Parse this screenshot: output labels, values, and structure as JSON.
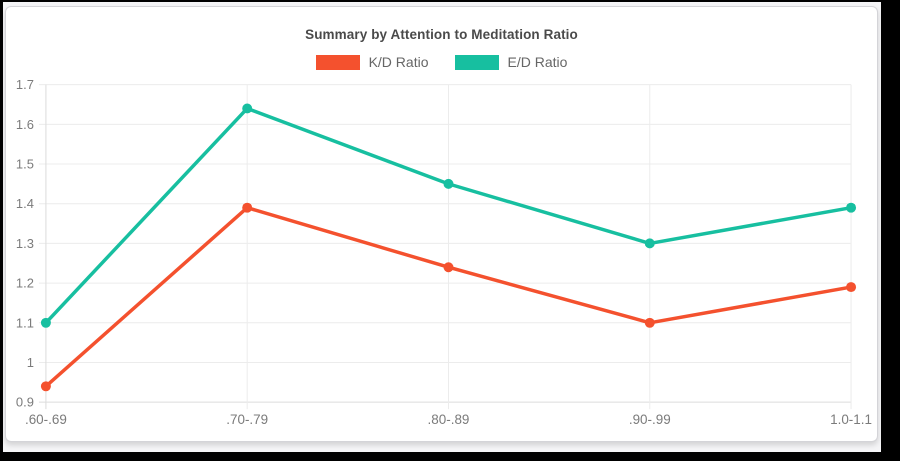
{
  "chart_data": {
    "type": "line",
    "title": "Summary by Attention to Meditation Ratio",
    "categories": [
      ".60-.69",
      ".70-.79",
      ".80-.89",
      ".90-.99",
      "1.0-1.1"
    ],
    "series": [
      {
        "name": "K/D Ratio",
        "color": "#f4512e",
        "values": [
          0.94,
          1.39,
          1.24,
          1.1,
          1.19
        ]
      },
      {
        "name": "E/D Ratio",
        "color": "#17bfa0",
        "values": [
          1.1,
          1.64,
          1.45,
          1.3,
          1.39
        ]
      }
    ],
    "xlabel": "",
    "ylabel": "",
    "ylim": [
      0.9,
      1.7
    ],
    "ytick_step": 0.1,
    "ytick_labels": [
      "0.9",
      "1",
      "1.1",
      "1.2",
      "1.3",
      "1.4",
      "1.5",
      "1.6",
      "1.7"
    ],
    "grid": true,
    "legend_position": "top"
  },
  "colors": {
    "page_background": "#000000",
    "surround_background": "#f5f5f7",
    "card_background": "#ffffff",
    "card_border": "#d4d4d8",
    "title_text": "#4a4a4a",
    "legend_text": "#666666",
    "axis_text": "#7b7b7b",
    "gridline": "#ececec",
    "axis_line": "#dcdcdc"
  }
}
